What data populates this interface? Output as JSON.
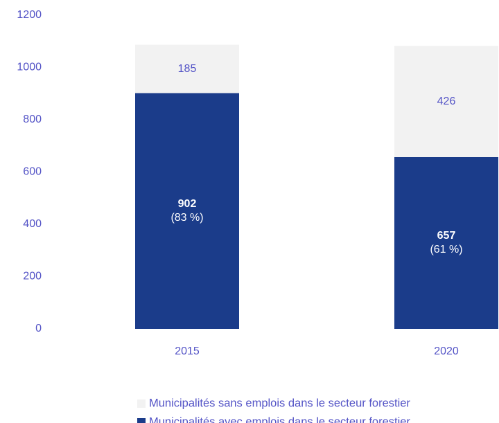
{
  "chart_data": {
    "type": "stacked_bar",
    "categories": [
      "2015",
      "2020"
    ],
    "series": [
      {
        "name": "Municipalités avec emplois dans le secteur forestier",
        "color": "#1b3c8a",
        "values": [
          902,
          657
        ],
        "share_labels": [
          "(83 %)",
          "(61 %)"
        ]
      },
      {
        "name": "Municipalités sans emplois dans le secteur forestier",
        "color": "#f2f2f2",
        "values": [
          185,
          426
        ]
      }
    ],
    "ylim": [
      0,
      1200
    ],
    "yticks": [
      0,
      200,
      400,
      600,
      800,
      1000,
      1200
    ],
    "grid": false
  }
}
